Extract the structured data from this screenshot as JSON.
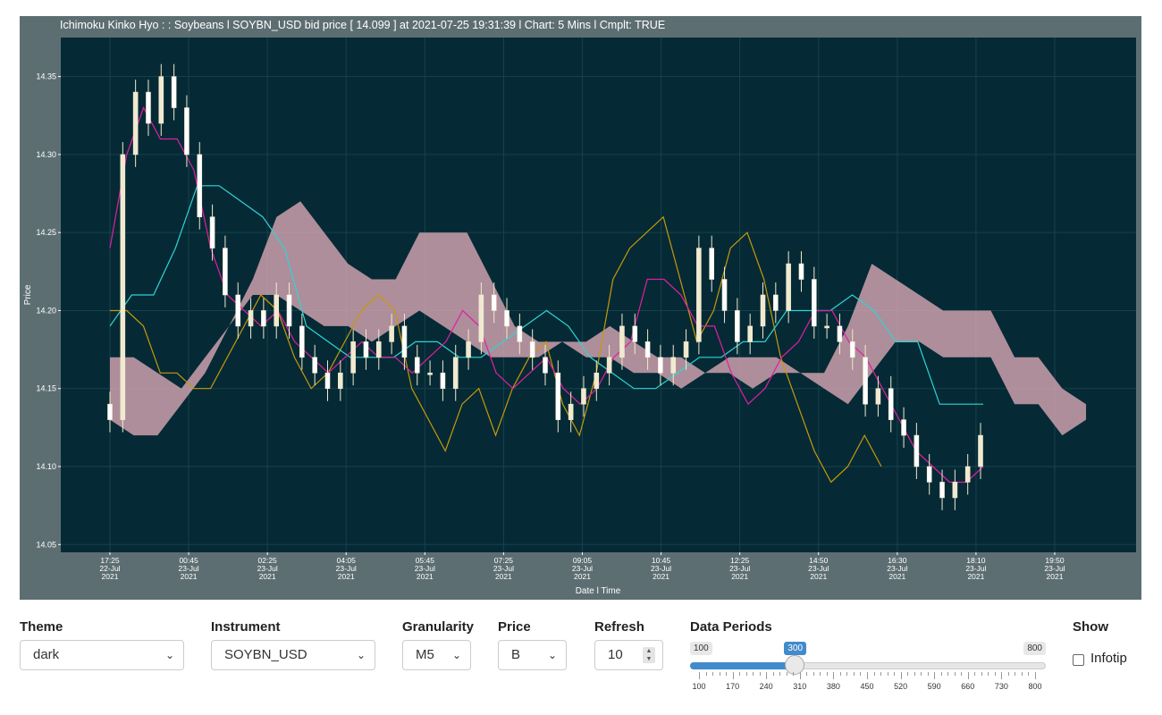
{
  "chart_data": {
    "type": "candlestick",
    "title": "Ichimoku Kinko Hyo : : Soybeans   l SOYBN_USD bid price [ 14.099 ] at 2021-07-25 19:31:39 l Chart: 5 Mins l Cmplt: TRUE",
    "xlabel": "Date l Time",
    "ylabel": "Price",
    "ylim": [
      14.045,
      14.375
    ],
    "y_ticks": [
      14.05,
      14.1,
      14.15,
      14.2,
      14.25,
      14.3,
      14.35
    ],
    "y_tick_labels": [
      "14.05",
      "14.10",
      "14.15",
      "14.20",
      "14.25",
      "14.30",
      "14.35"
    ],
    "x_ticks": [
      {
        "time": "17:25",
        "date": "22-Jul",
        "year": "2021"
      },
      {
        "time": "00:45",
        "date": "23-Jul",
        "year": "2021"
      },
      {
        "time": "02:25",
        "date": "23-Jul",
        "year": "2021"
      },
      {
        "time": "04:05",
        "date": "23-Jul",
        "year": "2021"
      },
      {
        "time": "05:45",
        "date": "23-Jul",
        "year": "2021"
      },
      {
        "time": "07:25",
        "date": "23-Jul",
        "year": "2021"
      },
      {
        "time": "09:05",
        "date": "23-Jul",
        "year": "2021"
      },
      {
        "time": "10:45",
        "date": "23-Jul",
        "year": "2021"
      },
      {
        "time": "12:25",
        "date": "23-Jul",
        "year": "2021"
      },
      {
        "time": "14:50",
        "date": "23-Jul",
        "year": "2021"
      },
      {
        "time": "16:30",
        "date": "23-Jul",
        "year": "2021"
      },
      {
        "time": "18:10",
        "date": "23-Jul",
        "year": "2021"
      },
      {
        "time": "19:50",
        "date": "23-Jul",
        "year": "2021"
      }
    ],
    "series": {
      "close": [
        14.13,
        14.3,
        14.34,
        14.32,
        14.35,
        14.33,
        14.3,
        14.26,
        14.24,
        14.21,
        14.19,
        14.2,
        14.19,
        14.21,
        14.19,
        14.17,
        14.16,
        14.15,
        14.16,
        14.18,
        14.17,
        14.18,
        14.19,
        14.17,
        14.16,
        14.16,
        14.15,
        14.17,
        14.18,
        14.21,
        14.2,
        14.19,
        14.18,
        14.17,
        14.16,
        14.13,
        14.14,
        14.15,
        14.16,
        14.17,
        14.19,
        14.18,
        14.17,
        14.16,
        14.17,
        14.18,
        14.24,
        14.22,
        14.2,
        14.18,
        14.19,
        14.21,
        14.2,
        14.23,
        14.22,
        14.19,
        14.19,
        14.18,
        14.17,
        14.14,
        14.15,
        14.13,
        14.12,
        14.1,
        14.09,
        14.08,
        14.09,
        14.1,
        14.12
      ],
      "tenkan": [
        14.24,
        14.3,
        14.33,
        14.31,
        14.31,
        14.29,
        14.24,
        14.21,
        14.2,
        14.19,
        14.2,
        14.18,
        14.17,
        14.16,
        14.17,
        14.18,
        14.17,
        14.17,
        14.16,
        14.17,
        14.18,
        14.2,
        14.19,
        14.16,
        14.15,
        14.16,
        14.17,
        14.15,
        14.14,
        14.15,
        14.17,
        14.18,
        14.22,
        14.22,
        14.21,
        14.19,
        14.19,
        14.16,
        14.14,
        14.15,
        14.17,
        14.18,
        14.2,
        14.2,
        14.18,
        14.17,
        14.15,
        14.13,
        14.11,
        14.1,
        14.09,
        14.09,
        14.1
      ],
      "kijun": [
        14.19,
        14.21,
        14.21,
        14.24,
        14.28,
        14.28,
        14.27,
        14.26,
        14.24,
        14.19,
        14.18,
        14.17,
        14.17,
        14.17,
        14.18,
        14.18,
        14.17,
        14.17,
        14.18,
        14.19,
        14.2,
        14.19,
        14.17,
        14.16,
        14.15,
        14.15,
        14.16,
        14.17,
        14.17,
        14.18,
        14.18,
        14.2,
        14.2,
        14.2,
        14.21,
        14.2,
        14.18,
        14.18,
        14.14,
        14.14,
        14.14
      ],
      "chikou": [
        14.2,
        14.2,
        14.19,
        14.16,
        14.16,
        14.15,
        14.15,
        14.17,
        14.19,
        14.21,
        14.2,
        14.17,
        14.15,
        14.16,
        14.18,
        14.2,
        14.21,
        14.2,
        14.15,
        14.13,
        14.11,
        14.14,
        14.15,
        14.12,
        14.15,
        14.17,
        14.18,
        14.14,
        14.12,
        14.16,
        14.22,
        14.24,
        14.25,
        14.26,
        14.22,
        14.18,
        14.2,
        14.24,
        14.25,
        14.22,
        14.17,
        14.14,
        14.11,
        14.09,
        14.1,
        14.12,
        14.1
      ],
      "senkou_a": [
        14.17,
        14.17,
        14.16,
        14.15,
        14.17,
        14.19,
        14.22,
        14.26,
        14.27,
        14.25,
        14.23,
        14.22,
        14.22,
        14.25,
        14.25,
        14.25,
        14.22,
        14.19,
        14.18,
        14.18,
        14.18,
        14.19,
        14.18,
        14.17,
        14.17,
        14.16,
        14.16,
        14.15,
        14.16,
        14.16,
        14.16,
        14.19,
        14.23,
        14.22,
        14.21,
        14.2,
        14.2,
        14.2,
        14.17,
        14.17,
        14.15,
        14.14
      ],
      "senkou_b": [
        14.13,
        14.12,
        14.12,
        14.14,
        14.16,
        14.19,
        14.21,
        14.21,
        14.2,
        14.19,
        14.19,
        14.18,
        14.19,
        14.2,
        14.19,
        14.18,
        14.17,
        14.17,
        14.17,
        14.18,
        14.17,
        14.17,
        14.16,
        14.16,
        14.15,
        14.16,
        14.17,
        14.17,
        14.17,
        14.16,
        14.15,
        14.14,
        14.16,
        14.18,
        14.18,
        14.17,
        14.17,
        14.17,
        14.14,
        14.14,
        14.12,
        14.13
      ]
    },
    "colors": {
      "background": "#052a35",
      "panel": "#5d6e72",
      "candle": "#f0ead0",
      "cloud": "#d8a8b4",
      "tenkan": "#e11fa0",
      "kijun": "#2fd4d4",
      "chikou": "#c8980a"
    },
    "grid": true,
    "legend": "none"
  },
  "controls": {
    "theme": {
      "label": "Theme",
      "value": "dark"
    },
    "instrument": {
      "label": "Instrument",
      "value": "SOYBN_USD"
    },
    "granularity": {
      "label": "Granularity",
      "value": "M5"
    },
    "price": {
      "label": "Price",
      "value": "B"
    },
    "refresh": {
      "label": "Refresh",
      "value": "10"
    },
    "data_periods": {
      "label": "Data Periods",
      "min": 100,
      "max": 800,
      "value": 300,
      "min_label": "100",
      "max_label": "800",
      "value_label": "300",
      "tick_labels": [
        "100",
        "170",
        "240",
        "310",
        "380",
        "450",
        "520",
        "590",
        "660",
        "730",
        "800"
      ]
    },
    "show": {
      "label": "Show",
      "option": "Infotip",
      "checked": false
    }
  }
}
